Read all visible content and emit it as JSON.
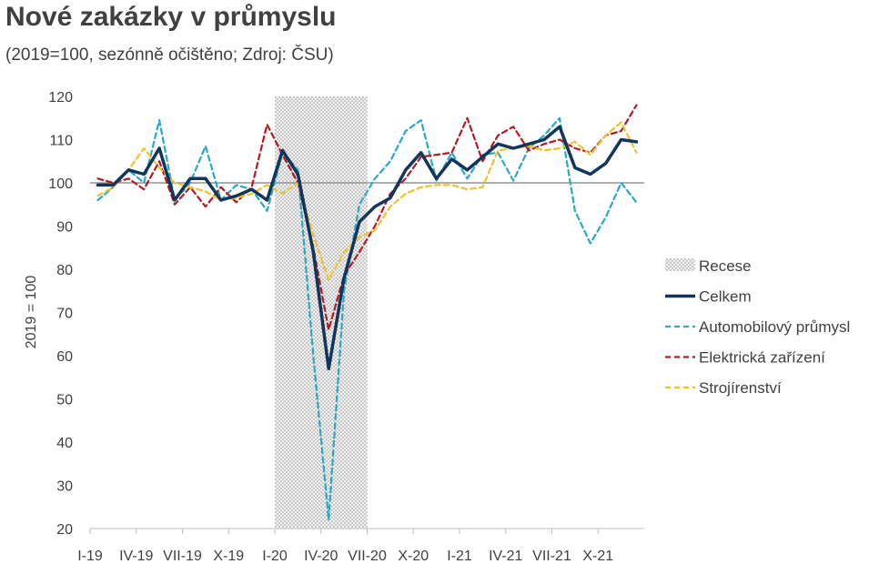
{
  "title": "Nové zakázky v průmyslu",
  "subtitle": "(2019=100, sezónně očištěno; Zdroj: ČSU)",
  "chart_data": {
    "type": "line",
    "ylabel": "2019 = 100",
    "ylim": [
      20,
      120
    ],
    "yticks": [
      20,
      30,
      40,
      50,
      60,
      70,
      80,
      90,
      100,
      110,
      120
    ],
    "xticks": [
      {
        "label": "I-19",
        "index": 0
      },
      {
        "label": "IV-19",
        "index": 3
      },
      {
        "label": "VII-19",
        "index": 6
      },
      {
        "label": "X-19",
        "index": 9
      },
      {
        "label": "I-20",
        "index": 12
      },
      {
        "label": "IV-20",
        "index": 15
      },
      {
        "label": "VII-20",
        "index": 18
      },
      {
        "label": "X-20",
        "index": 21
      },
      {
        "label": "I-21",
        "index": 24
      },
      {
        "label": "IV-21",
        "index": 27
      },
      {
        "label": "VII-21",
        "index": 30
      },
      {
        "label": "X-21",
        "index": 33
      }
    ],
    "months": 36,
    "recession": {
      "label": "Recese",
      "start_index": 12,
      "end_index": 18
    },
    "reference_line": 100,
    "series": [
      {
        "name": "Celkem",
        "color": "#12355b",
        "style": "solid",
        "values": [
          99.5,
          99.5,
          103,
          102,
          108,
          96,
          101,
          101,
          96,
          97,
          98.5,
          96,
          107.5,
          102,
          84,
          57,
          78,
          91,
          94.5,
          96.5,
          103,
          107,
          101,
          105.5,
          103,
          106,
          109,
          108,
          109,
          110,
          113,
          103.5,
          102,
          104.5,
          110,
          109.5
        ]
      },
      {
        "name": "Automobilový průmysl",
        "color": "#2aa7c9",
        "style": "dashed",
        "values": [
          96,
          99,
          103,
          100,
          114.5,
          96,
          100,
          108.5,
          96,
          99.5,
          98.5,
          93.5,
          107,
          103,
          60,
          22,
          75,
          95,
          101,
          105,
          112,
          114.5,
          100.5,
          107,
          101,
          106.5,
          107,
          100.5,
          108,
          111,
          115,
          93.5,
          86,
          92,
          100,
          95.5
        ]
      },
      {
        "name": "Elektrická zařízení",
        "color": "#b11c24",
        "style": "dashed",
        "values": [
          101,
          100,
          101,
          98.5,
          105,
          95,
          99,
          94.5,
          99,
          95.5,
          99,
          113.5,
          106.5,
          100,
          85,
          66,
          78.5,
          84,
          90,
          97.5,
          101,
          106,
          106.5,
          107,
          115,
          105,
          111,
          113,
          107.5,
          109,
          110,
          108,
          107,
          111,
          112,
          118
        ]
      },
      {
        "name": "Strojírenství",
        "color": "#f2c12e",
        "style": "dashed",
        "values": [
          97,
          99,
          103,
          108,
          103.5,
          100,
          99,
          98,
          96,
          96.5,
          97.5,
          99.5,
          97.5,
          100,
          88,
          77.5,
          84,
          87.5,
          89,
          94.5,
          97.5,
          99,
          99.5,
          99.5,
          98.5,
          99,
          107.5,
          108,
          108.5,
          107.5,
          108,
          109.5,
          106.5,
          111,
          114,
          107
        ]
      }
    ],
    "legend": {
      "position": "right",
      "entries": [
        "Recese",
        "Celkem",
        "Automobilový průmysl",
        "Elektrická zařízení",
        "Strojírenstv­í"
      ]
    }
  }
}
